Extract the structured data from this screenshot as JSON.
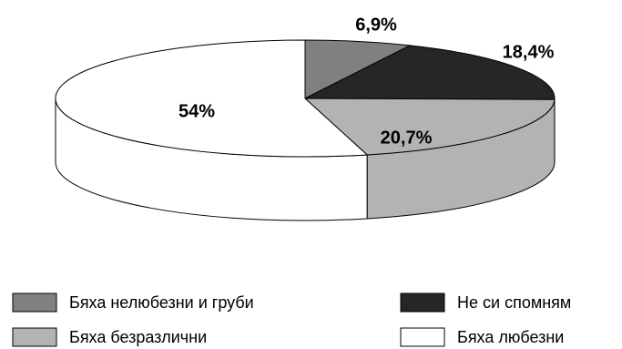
{
  "chart_data": {
    "type": "pie",
    "title": "",
    "style": "3d",
    "legend_position": "bottom",
    "slices": [
      {
        "label": "Бяха нелюбезни и груби",
        "value": 6.9,
        "display": "6,9%",
        "color": "#808080"
      },
      {
        "label": "Не си спомням",
        "value": 18.4,
        "display": "18,4%",
        "color": "#262626"
      },
      {
        "label": "Бяха безразлични",
        "value": 20.7,
        "display": "20,7%",
        "color": "#b3b3b3"
      },
      {
        "label": "Бяха любезни",
        "value": 54,
        "display": "54%",
        "color": "#ffffff"
      }
    ]
  }
}
